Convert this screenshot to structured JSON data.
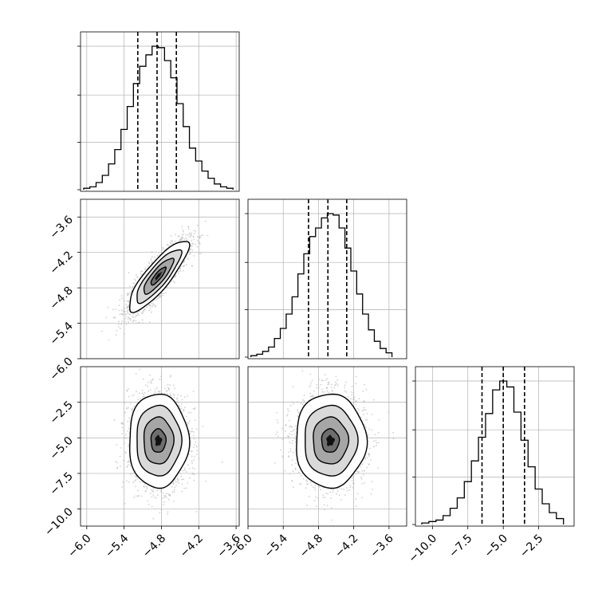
{
  "chart_data": {
    "type": "corner",
    "parameters": 3,
    "colors": {
      "line": "#000000",
      "grid": "#b0b0b0",
      "frame": "#000000",
      "points": "#bdbdbd"
    },
    "grid": true,
    "axes": [
      {
        "range": [
          -6.1,
          -3.55
        ],
        "ticks": [
          -6.0,
          -5.4,
          -4.8,
          -4.2,
          -3.6
        ],
        "tick_labels": [
          "−6.0",
          "−5.4",
          "−4.8",
          "−4.2",
          "−3.6"
        ]
      },
      {
        "range": [
          -6.0,
          -3.3
        ],
        "ticks": [
          -6.0,
          -5.4,
          -4.8,
          -4.2,
          -3.6
        ],
        "tick_labels": [
          "−6.0",
          "−5.4",
          "−4.8",
          "−4.2",
          "−3.6"
        ]
      },
      {
        "range": [
          -11.2,
          0.0
        ],
        "ticks": [
          -10.0,
          -7.5,
          -5.0,
          -2.5
        ],
        "tick_labels": [
          "−10.0",
          "−7.5",
          "−5.0",
          "−2.5"
        ]
      }
    ],
    "histograms": [
      {
        "axis": 0,
        "bin_edges": [
          -6.05,
          -5.95,
          -5.85,
          -5.75,
          -5.65,
          -5.55,
          -5.45,
          -5.35,
          -5.25,
          -5.15,
          -5.05,
          -4.95,
          -4.85,
          -4.75,
          -4.65,
          -4.55,
          -4.45,
          -4.35,
          -4.25,
          -4.15,
          -4.05,
          -3.95,
          -3.85,
          -3.75,
          -3.65
        ],
        "counts": [
          1,
          2,
          5,
          10,
          18,
          28,
          42,
          58,
          74,
          86,
          94,
          100,
          99,
          90,
          78,
          60,
          44,
          29,
          20,
          13,
          8,
          4,
          2,
          1
        ],
        "quantiles": [
          -5.18,
          -4.87,
          -4.56
        ]
      },
      {
        "axis": 1,
        "bin_edges": [
          -5.95,
          -5.85,
          -5.75,
          -5.65,
          -5.55,
          -5.45,
          -5.35,
          -5.25,
          -5.15,
          -5.05,
          -4.95,
          -4.85,
          -4.75,
          -4.65,
          -4.55,
          -4.45,
          -4.35,
          -4.25,
          -4.15,
          -4.05,
          -3.95,
          -3.85,
          -3.75,
          -3.65,
          -3.55
        ],
        "counts": [
          1,
          2,
          4,
          7,
          13,
          20,
          30,
          42,
          58,
          72,
          84,
          90,
          97,
          100,
          99,
          90,
          76,
          60,
          44,
          30,
          19,
          11,
          6,
          3
        ],
        "quantiles": [
          -4.97,
          -4.64,
          -4.32
        ]
      },
      {
        "axis": 2,
        "bin_edges": [
          -10.75,
          -10.25,
          -9.75,
          -9.25,
          -8.75,
          -8.25,
          -7.75,
          -7.25,
          -6.75,
          -6.25,
          -5.75,
          -5.25,
          -4.75,
          -4.25,
          -3.75,
          -3.25,
          -2.75,
          -2.25,
          -1.75,
          -1.25,
          -0.75
        ],
        "counts": [
          1,
          2,
          3,
          6,
          11,
          18,
          29,
          43,
          59,
          75,
          91,
          97,
          93,
          76,
          57,
          39,
          24,
          14,
          8,
          4
        ],
        "quantiles": [
          -6.5,
          -5.0,
          -3.5
        ]
      }
    ],
    "joint": [
      {
        "x_axis": 0,
        "y_axis": 1,
        "mean": [
          -4.85,
          -4.6
        ],
        "sd": [
          0.24,
          0.3
        ],
        "rho": 0.85
      },
      {
        "x_axis": 0,
        "y_axis": 2,
        "mean": [
          -4.85,
          -5.2
        ],
        "sd": [
          0.24,
          1.65
        ],
        "rho": 0.0
      },
      {
        "x_axis": 1,
        "y_axis": 2,
        "mean": [
          -4.6,
          -5.2
        ],
        "sd": [
          0.3,
          1.65
        ],
        "rho": 0.0
      }
    ],
    "contour_levels_sigma": [
      0.5,
      1.0,
      1.5,
      2.0
    ]
  }
}
